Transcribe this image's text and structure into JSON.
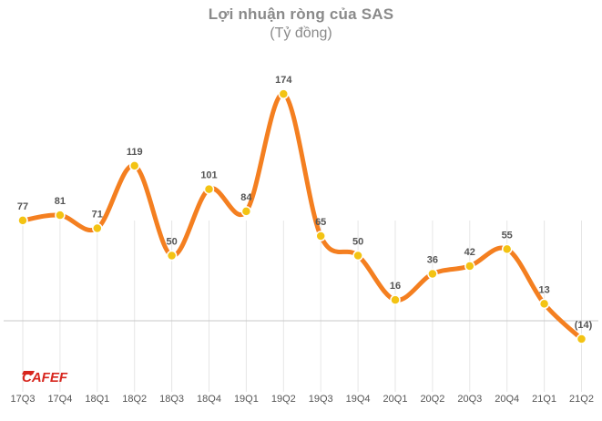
{
  "chart_data": {
    "type": "line",
    "title": "Lợi nhuận ròng của SAS",
    "subtitle": "(Tỷ đồng)",
    "categories": [
      "17Q3",
      "17Q4",
      "18Q1",
      "18Q2",
      "18Q3",
      "18Q4",
      "19Q1",
      "19Q2",
      "19Q3",
      "19Q4",
      "20Q1",
      "20Q2",
      "20Q3",
      "20Q4",
      "21Q1",
      "21Q2"
    ],
    "values": [
      77,
      81,
      71,
      119,
      50,
      101,
      84,
      174,
      65,
      50,
      16,
      36,
      42,
      55,
      13,
      -14
    ],
    "data_labels": [
      "77",
      "81",
      "71",
      "119",
      "50",
      "101",
      "84",
      "174",
      "65",
      "50",
      "16",
      "36",
      "42",
      "55",
      "13",
      "(14)"
    ],
    "ylim": [
      -30,
      190
    ],
    "grid": "vertical",
    "colors": {
      "line": "#f47f20",
      "marker": "#f3c313",
      "grid": "#e6e6e6",
      "axis": "#c8c8c8",
      "label": "#555555",
      "tick": "#555555"
    }
  },
  "logo": {
    "text": "CAFEF",
    "icon": "cafef-logo"
  }
}
